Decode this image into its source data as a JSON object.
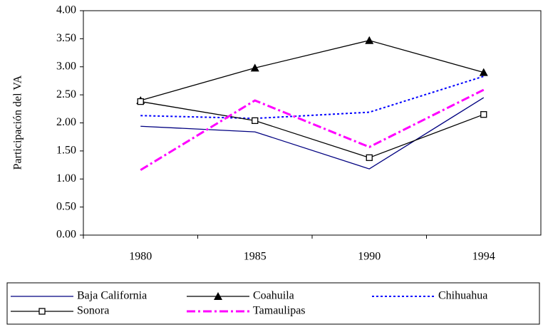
{
  "chart_data": {
    "type": "line",
    "y_label": "Participación del VA",
    "categories": [
      "1980",
      "1985",
      "1990",
      "1994"
    ],
    "series": [
      {
        "name": "Baja California",
        "color": "#000080",
        "style": "solid",
        "values": [
          1.94,
          1.84,
          1.18,
          2.45
        ]
      },
      {
        "name": "Coahuila",
        "color": "#000000",
        "style": "solid",
        "marker": "triangle",
        "values": [
          2.4,
          2.98,
          3.47,
          2.9
        ]
      },
      {
        "name": "Chihuahua",
        "color": "#0000ff",
        "style": "dotted",
        "values": [
          2.13,
          2.08,
          2.19,
          2.83
        ]
      },
      {
        "name": "Sonora",
        "color": "#000000",
        "style": "solid",
        "marker": "square",
        "values": [
          2.38,
          2.04,
          1.38,
          2.15
        ]
      },
      {
        "name": "Tamaulipas",
        "color": "#ff00ff",
        "style": "dashdot",
        "values": [
          1.16,
          2.4,
          1.57,
          2.59
        ]
      }
    ],
    "ylim": [
      0,
      4
    ],
    "yticks": [
      {
        "value": 0,
        "label": "0.00"
      },
      {
        "value": 0.5,
        "label": "0.50"
      },
      {
        "value": 1,
        "label": "1.00"
      },
      {
        "value": 1.5,
        "label": "1.50"
      },
      {
        "value": 2,
        "label": "2.00"
      },
      {
        "value": 2.5,
        "label": "2.50"
      },
      {
        "value": 3,
        "label": "3.00"
      },
      {
        "value": 3.5,
        "label": "3.50"
      },
      {
        "value": 4,
        "label": "4.00"
      }
    ],
    "legend": "bottom"
  }
}
